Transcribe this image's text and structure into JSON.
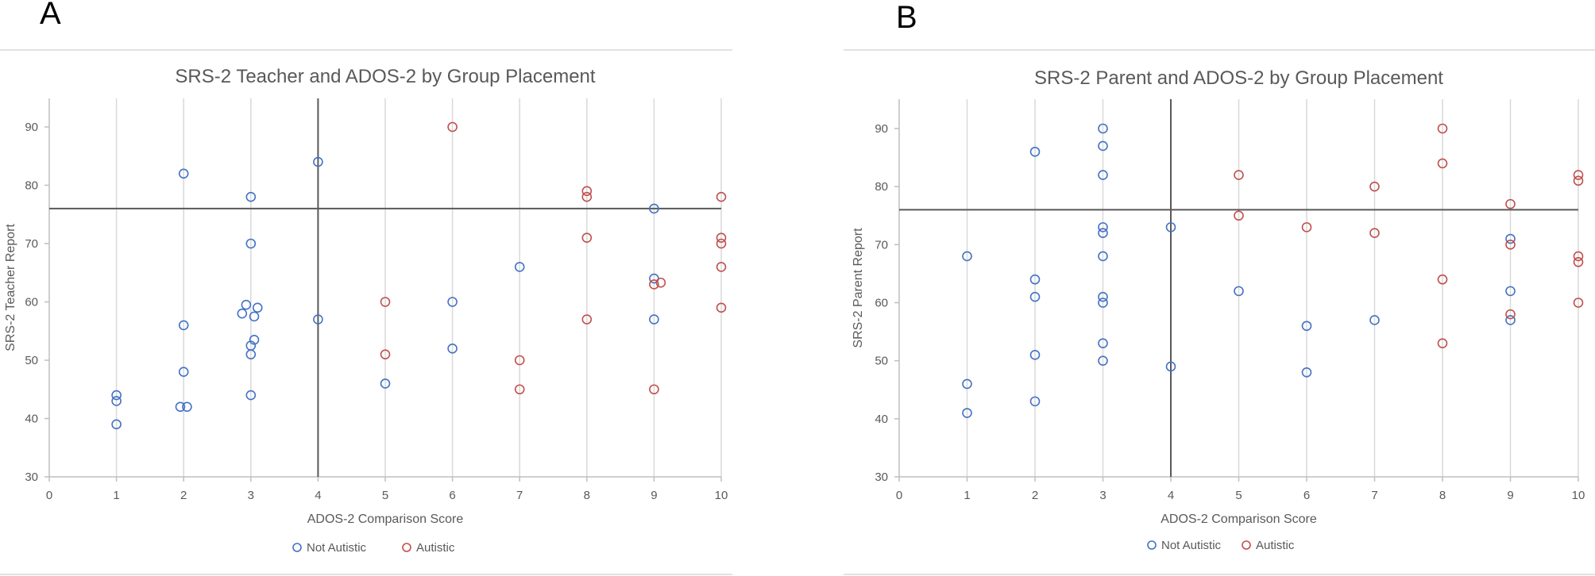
{
  "colors": {
    "not_autistic": "#4472c4",
    "autistic": "#c0504d",
    "threshold": "#595959",
    "grid": "#d9d9d9",
    "text": "#595959"
  },
  "chart_data": [
    {
      "panel_letter": "A",
      "type": "scatter",
      "title": "SRS-2 Teacher and ADOS-2 by Group Placement",
      "xlabel": "ADOS-2 Comparison Score",
      "ylabel": "SRS-2 Teacher Report",
      "xlim": [
        0,
        10
      ],
      "ylim": [
        30,
        95
      ],
      "xticks": [
        0,
        1,
        2,
        3,
        4,
        5,
        6,
        7,
        8,
        9,
        10
      ],
      "yticks": [
        30,
        40,
        50,
        60,
        70,
        80,
        90
      ],
      "grid": "vertical",
      "reference_lines": {
        "x": 4,
        "y": 76
      },
      "legend": "bottom",
      "series": [
        {
          "name": "Not Autistic",
          "marker": "open-circle",
          "points": [
            [
              1,
              44
            ],
            [
              1,
              43
            ],
            [
              1,
              39
            ],
            [
              2,
              82
            ],
            [
              2,
              56
            ],
            [
              2,
              48
            ],
            [
              1.95,
              42
            ],
            [
              2.05,
              42
            ],
            [
              3,
              78
            ],
            [
              3,
              70
            ],
            [
              2.93,
              59.5
            ],
            [
              2.87,
              58
            ],
            [
              3.1,
              59
            ],
            [
              3.05,
              57.5
            ],
            [
              3.05,
              53.5
            ],
            [
              3,
              52.5
            ],
            [
              3,
              51
            ],
            [
              3,
              44
            ],
            [
              4,
              84
            ],
            [
              4,
              57
            ],
            [
              5,
              46
            ],
            [
              6,
              60
            ],
            [
              6,
              52
            ],
            [
              7,
              66
            ],
            [
              9,
              76
            ],
            [
              9,
              64
            ],
            [
              9,
              57
            ]
          ]
        },
        {
          "name": "Autistic",
          "marker": "open-circle",
          "points": [
            [
              5,
              60
            ],
            [
              5,
              51
            ],
            [
              6,
              90
            ],
            [
              7,
              50
            ],
            [
              7,
              45
            ],
            [
              8,
              79
            ],
            [
              8,
              78
            ],
            [
              8,
              71
            ],
            [
              8,
              57
            ],
            [
              9,
              63
            ],
            [
              9.1,
              63.3
            ],
            [
              9,
              45
            ],
            [
              10,
              78
            ],
            [
              10,
              71
            ],
            [
              10,
              70
            ],
            [
              10,
              66
            ],
            [
              10,
              59
            ]
          ]
        }
      ]
    },
    {
      "panel_letter": "B",
      "type": "scatter",
      "title": "SRS-2 Parent and ADOS-2 by Group Placement",
      "xlabel": "ADOS-2 Comparison Score",
      "ylabel": "SRS-2 Parent Report",
      "xlim": [
        0,
        10
      ],
      "ylim": [
        30,
        95
      ],
      "xticks": [
        0,
        1,
        2,
        3,
        4,
        5,
        6,
        7,
        8,
        9,
        10
      ],
      "yticks": [
        30,
        40,
        50,
        60,
        70,
        80,
        90
      ],
      "grid": "vertical",
      "reference_lines": {
        "x": 4,
        "y": 76
      },
      "legend": "bottom",
      "series": [
        {
          "name": "Not Autistic",
          "marker": "open-circle",
          "points": [
            [
              1,
              68
            ],
            [
              1,
              46
            ],
            [
              1,
              41
            ],
            [
              2,
              86
            ],
            [
              2,
              64
            ],
            [
              2,
              61
            ],
            [
              2,
              51
            ],
            [
              2,
              43
            ],
            [
              3,
              90
            ],
            [
              3,
              87
            ],
            [
              3,
              82
            ],
            [
              3,
              73
            ],
            [
              3,
              72
            ],
            [
              3,
              68
            ],
            [
              3,
              61
            ],
            [
              3,
              60
            ],
            [
              3,
              53
            ],
            [
              3,
              50
            ],
            [
              4,
              73
            ],
            [
              4,
              49
            ],
            [
              5,
              62
            ],
            [
              6,
              56
            ],
            [
              6,
              48
            ],
            [
              7,
              57
            ],
            [
              9,
              71
            ],
            [
              9,
              62
            ],
            [
              9,
              57
            ]
          ]
        },
        {
          "name": "Autistic",
          "marker": "open-circle",
          "points": [
            [
              5,
              82
            ],
            [
              5,
              75
            ],
            [
              6,
              73
            ],
            [
              7,
              80
            ],
            [
              7,
              72
            ],
            [
              8,
              90
            ],
            [
              8,
              84
            ],
            [
              8,
              64
            ],
            [
              8,
              53
            ],
            [
              9,
              77
            ],
            [
              9,
              70
            ],
            [
              9,
              58
            ],
            [
              10,
              82
            ],
            [
              10,
              81
            ],
            [
              10,
              68
            ],
            [
              10,
              67
            ],
            [
              10,
              60
            ]
          ]
        }
      ]
    }
  ]
}
